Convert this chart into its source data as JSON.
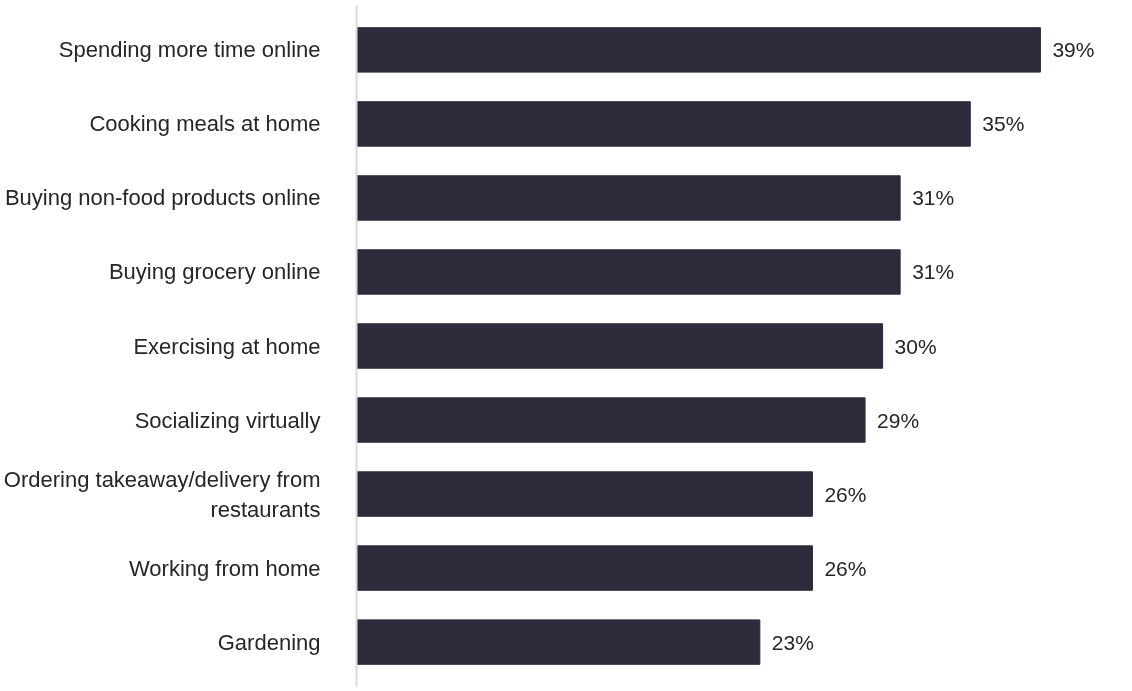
{
  "chart_data": {
    "type": "bar",
    "orientation": "horizontal",
    "categories": [
      "Spending more time online",
      "Cooking meals at home",
      "Buying non-food products online",
      "Buying grocery online",
      "Exercising at home",
      "Socializing virtually",
      "Ordering takeaway/delivery from restaurants",
      "Working from home",
      "Gardening"
    ],
    "values": [
      39,
      35,
      31,
      31,
      30,
      29,
      26,
      26,
      23
    ],
    "value_labels": [
      "39%",
      "35%",
      "31%",
      "31%",
      "30%",
      "29%",
      "26%",
      "26%",
      "23%"
    ],
    "color": "#2e2a3c"
  }
}
